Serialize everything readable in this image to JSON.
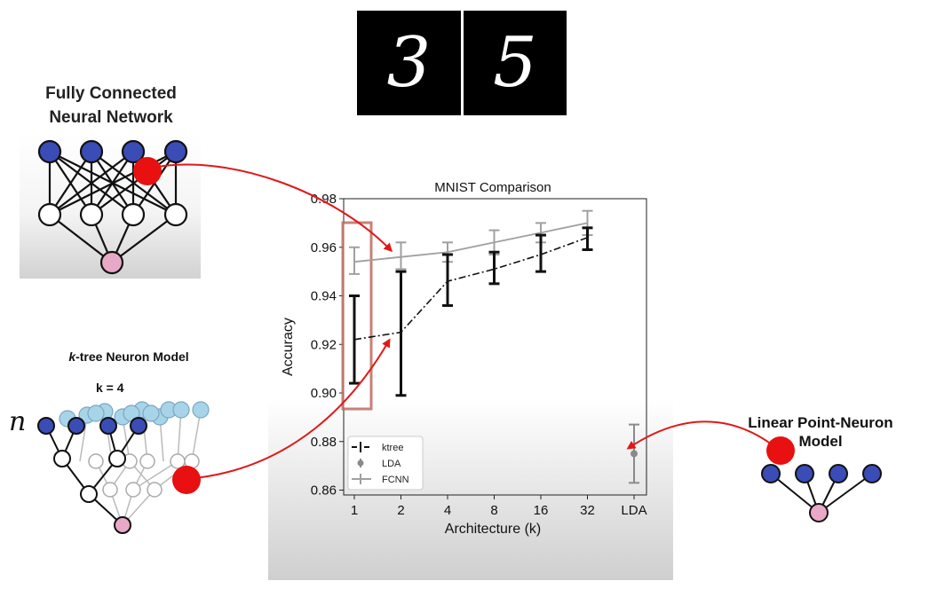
{
  "digits": [
    "3",
    "5"
  ],
  "fcnn_panel": {
    "title": "Fully Connected\nNeural Network"
  },
  "ktree_panel": {
    "title_k": "k",
    "title_rest": "-tree Neuron Model",
    "k_label": "k = 4",
    "input_label": "n"
  },
  "linear_panel": {
    "title": "Linear Point-Neuron\nModel"
  },
  "colors": {
    "arrow": "#e01818",
    "dot": "#e81010",
    "ktree": "#111111",
    "fcnn": "#9a9a9a",
    "highlight": "#c06a5e",
    "neuron_blue": "#3a4cb6",
    "neuron_light": "#a8d4ea",
    "neuron_pink": "#e8a8c8"
  },
  "chart_data": {
    "type": "line",
    "title": "MNIST Comparison",
    "xlabel": "Architecture (k)",
    "ylabel": "Accuracy",
    "categories": [
      "1",
      "2",
      "4",
      "8",
      "16",
      "32",
      "LDA"
    ],
    "ylim": [
      0.858,
      0.98
    ],
    "yticks": [
      "0.86",
      "0.88",
      "0.90",
      "0.92",
      "0.94",
      "0.96",
      "0.98"
    ],
    "ytick_values": [
      0.86,
      0.88,
      0.9,
      0.92,
      0.94,
      0.96,
      0.98
    ],
    "series": [
      {
        "name": "ktree",
        "style": "dashdot",
        "color": "#111111",
        "x": [
          "1",
          "2",
          "4",
          "8",
          "16",
          "32"
        ],
        "values": [
          0.922,
          0.925,
          0.946,
          0.951,
          0.957,
          0.964
        ],
        "err_low": [
          0.904,
          0.899,
          0.936,
          0.945,
          0.95,
          0.959
        ],
        "err_high": [
          0.94,
          0.95,
          0.957,
          0.958,
          0.965,
          0.968
        ]
      },
      {
        "name": "LDA",
        "style": "point",
        "color": "#8a8a8a",
        "x": [
          "LDA"
        ],
        "values": [
          0.875
        ],
        "err_low": [
          0.863
        ],
        "err_high": [
          0.887
        ]
      },
      {
        "name": "FCNN",
        "style": "solid",
        "color": "#a0a0a0",
        "x": [
          "1",
          "2",
          "4",
          "8",
          "16",
          "32"
        ],
        "values": [
          0.954,
          0.956,
          0.958,
          0.962,
          0.966,
          0.97
        ],
        "err_low": [
          0.949,
          0.951,
          0.954,
          0.957,
          0.962,
          0.965
        ],
        "err_high": [
          0.96,
          0.962,
          0.962,
          0.967,
          0.97,
          0.975
        ]
      }
    ],
    "highlight_category": "1",
    "grid": false,
    "legend_position": "lower-left"
  }
}
